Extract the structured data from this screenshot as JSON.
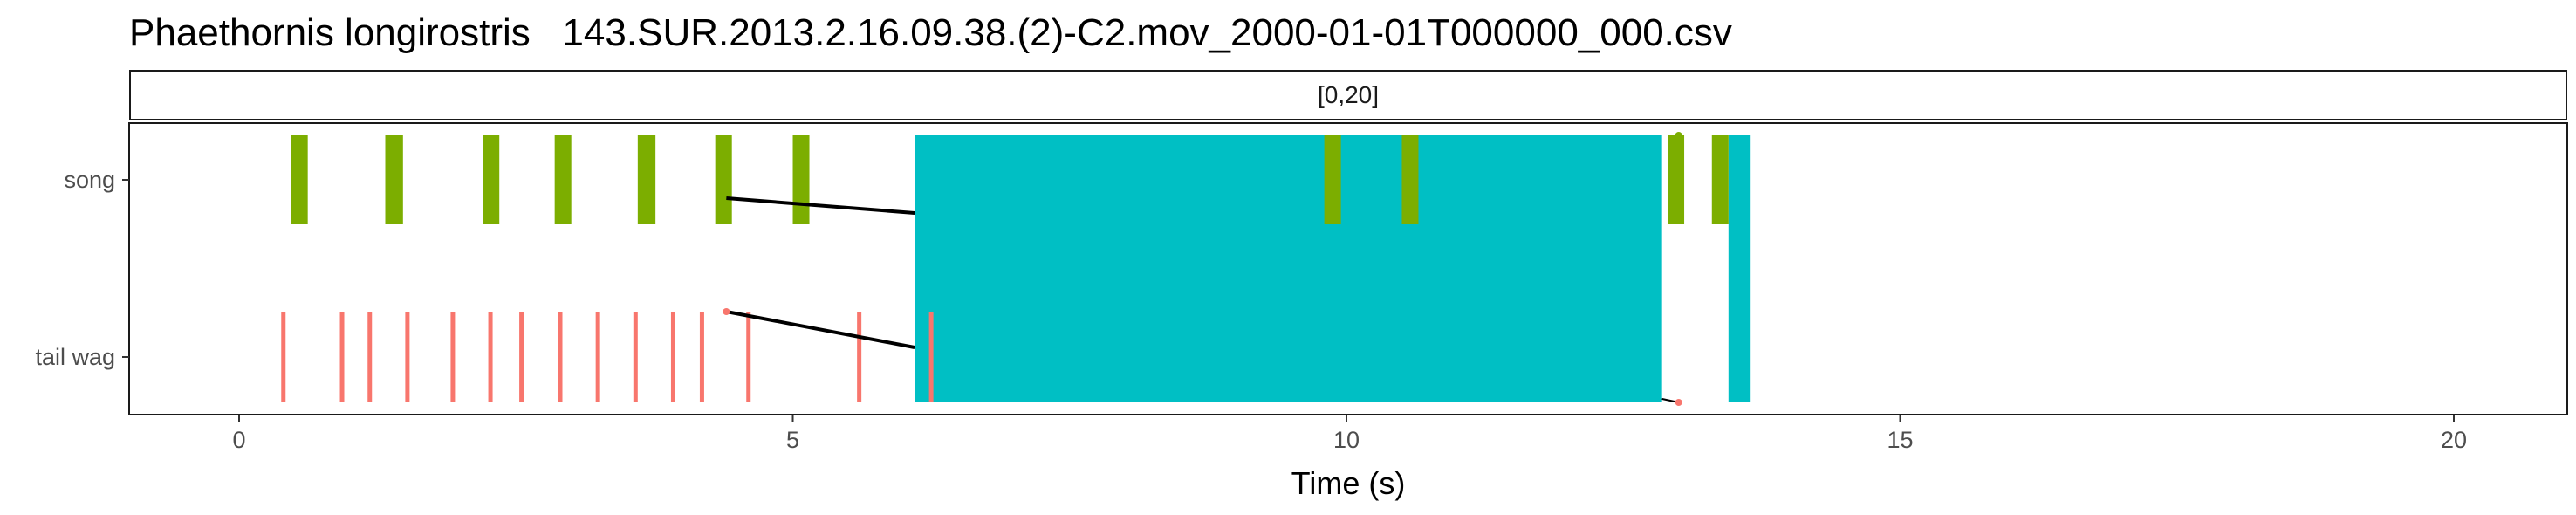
{
  "chart_data": {
    "type": "timeline",
    "title": "Phaethornis longirostris   143.SUR.2013.2.16.09.38.(2)-C2.mov_2000-01-01T000000_000.csv",
    "facet_label": "[0,20]",
    "xlabel": "Time (s)",
    "xlim": [
      -1,
      21
    ],
    "x_ticks": [
      0,
      5,
      10,
      15,
      20
    ],
    "categories": [
      "song",
      "tail wag"
    ],
    "colors": {
      "song": "#7CAE00",
      "tail wag": "#F8766D",
      "overlap": "#00BFC4",
      "link": "#000000"
    },
    "series": [
      {
        "name": "song",
        "events": [
          [
            0.47,
            0.62
          ],
          [
            1.32,
            1.48
          ],
          [
            2.2,
            2.35
          ],
          [
            2.85,
            3.0
          ],
          [
            3.6,
            3.76
          ],
          [
            4.3,
            4.45
          ],
          [
            5.0,
            5.15
          ],
          [
            9.8,
            9.95
          ],
          [
            10.5,
            10.65
          ],
          [
            12.9,
            13.05
          ],
          [
            13.3,
            13.45
          ]
        ]
      },
      {
        "name": "tail wag",
        "events": [
          0.4,
          0.93,
          1.18,
          1.52,
          1.93,
          2.27,
          2.55,
          2.9,
          3.24,
          3.58,
          3.92,
          4.18,
          4.6,
          5.6,
          6.25
        ]
      }
    ],
    "overlap_blocks": [
      [
        6.1,
        12.85
      ],
      [
        13.45,
        13.65
      ]
    ],
    "links": [
      {
        "from": [
          4.4,
          "tail wag"
        ],
        "to": [
          6.1,
          "tail wag_mid"
        ]
      },
      {
        "from": [
          4.4,
          "song_mid"
        ],
        "to": [
          6.1,
          "song_mid"
        ]
      }
    ]
  }
}
